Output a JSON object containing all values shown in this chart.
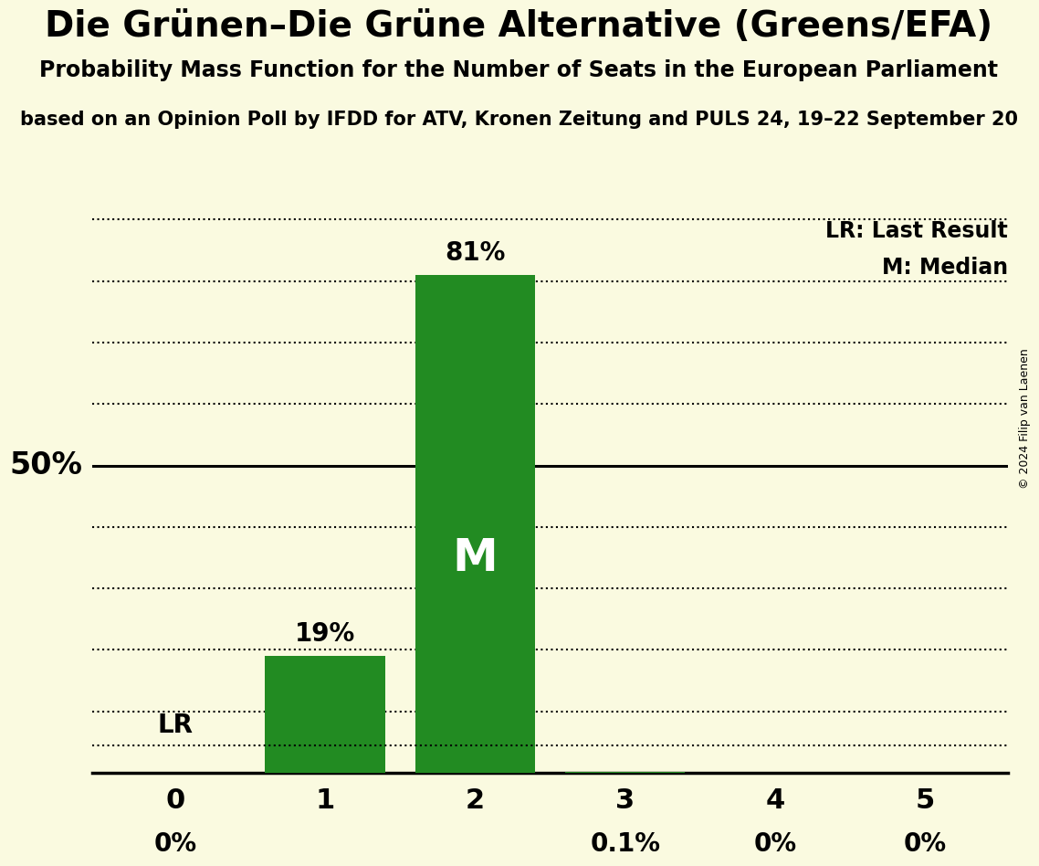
{
  "title": "Die Grünen–Die Grüne Alternative (Greens/EFA)",
  "subtitle": "Probability Mass Function for the Number of Seats in the European Parliament",
  "source_line": "based on an Opinion Poll by IFDD for ATV, Kronen Zeitung and PULS 24, 19–22 September 20",
  "copyright": "© 2024 Filip van Laenen",
  "categories": [
    0,
    1,
    2,
    3,
    4,
    5
  ],
  "values": [
    0.0,
    19.0,
    81.0,
    0.1,
    0.0,
    0.0
  ],
  "bar_labels": [
    "0%",
    "19%",
    "81%",
    "0.1%",
    "0%",
    "0%"
  ],
  "bar_color": "#228B22",
  "background_color": "#FAFAE0",
  "median_seat": 2,
  "lr_line_value": 4.5,
  "legend_lr": "LR: Last Result",
  "legend_m": "M: Median",
  "ylabel_50": "50%",
  "dotted_yticks": [
    10,
    20,
    30,
    40,
    60,
    70,
    80,
    90
  ],
  "solid_ytick": 50,
  "ylim_max": 92
}
